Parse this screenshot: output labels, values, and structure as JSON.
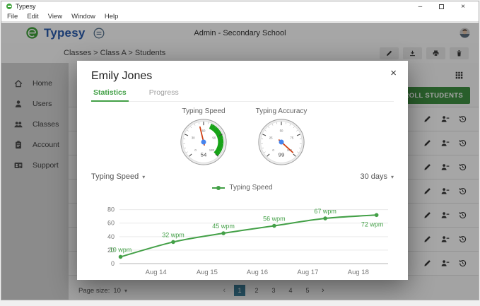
{
  "window": {
    "title": "Typesy",
    "menu": [
      "File",
      "Edit",
      "View",
      "Window",
      "Help"
    ],
    "controls": {
      "minimize": "–",
      "close": "×"
    }
  },
  "header": {
    "brand": "Typesy",
    "title": "Admin - Secondary School"
  },
  "breadcrumb": {
    "text": "Classes > Class A > Students"
  },
  "toolbar": {
    "buttons": [
      "edit",
      "download",
      "print",
      "delete"
    ]
  },
  "sidebar": {
    "items": [
      {
        "label": "Home",
        "icon": "home"
      },
      {
        "label": "Users",
        "icon": "user"
      },
      {
        "label": "Classes",
        "icon": "users"
      },
      {
        "label": "Account",
        "icon": "clipboard"
      },
      {
        "label": "Support",
        "icon": "idcard"
      }
    ]
  },
  "content": {
    "enroll_label": "ENROLL STUDENTS"
  },
  "background": {
    "row_count": 7,
    "row_actions": [
      "edit",
      "unenroll",
      "history"
    ]
  },
  "pagination": {
    "size_label": "Page size:",
    "size_value": "10",
    "caret": "▾",
    "prev": "‹",
    "next": "›",
    "pages": [
      "1",
      "2",
      "3",
      "4",
      "5"
    ],
    "active": "1"
  },
  "modal": {
    "title": "Emily Jones",
    "close": "×",
    "tabs": [
      {
        "label": "Statistics",
        "active": true
      },
      {
        "label": "Progress",
        "active": false
      }
    ],
    "gauges": [
      {
        "label": "Typing Speed",
        "value": 54,
        "min": 0,
        "max": 120,
        "major_step": 30,
        "green_from": 70,
        "green_to": 120
      },
      {
        "label": "Typing Accuracy",
        "value": 99,
        "min": 0,
        "max": 100,
        "major_step": 25
      }
    ],
    "filters": {
      "metric": "Typing Speed",
      "range": "30 days",
      "caret": "▾"
    }
  },
  "chart_data": {
    "type": "line",
    "title": "",
    "legend": {
      "position": "top",
      "entries": [
        "Typing Speed"
      ]
    },
    "x_tick_labels": [
      "Aug 14",
      "Aug 15",
      "Aug 16",
      "Aug 17",
      "Aug 18"
    ],
    "x_tick_positions": [
      0.136,
      0.326,
      0.513,
      0.701,
      0.889
    ],
    "y_ticks": [
      0,
      20,
      40,
      60,
      80
    ],
    "ylim": [
      0,
      88
    ],
    "grid": "horizontal",
    "series": [
      {
        "name": "Typing Speed",
        "color": "#43a047",
        "points": [
          {
            "x_frac": 0.004,
            "value": 10,
            "label": "10 wpm"
          },
          {
            "x_frac": 0.2,
            "value": 32,
            "label": "32 wpm"
          },
          {
            "x_frac": 0.387,
            "value": 45,
            "label": "45 wpm"
          },
          {
            "x_frac": 0.576,
            "value": 56,
            "label": "56 wpm"
          },
          {
            "x_frac": 0.766,
            "value": 67,
            "label": "67 wpm"
          },
          {
            "x_frac": 0.957,
            "value": 72,
            "label": "72 wpm"
          }
        ]
      }
    ]
  },
  "colors": {
    "brand_blue": "#2a5db0",
    "logo_green": "#3fa33a",
    "tab_green": "#43a047",
    "chart_green": "#43a047",
    "gauge_green": "#17a317",
    "needle": "#cf3e12",
    "hub": "#4684ee",
    "enroll_green": "#3f9142",
    "pager_active": "#3d7e9a"
  }
}
